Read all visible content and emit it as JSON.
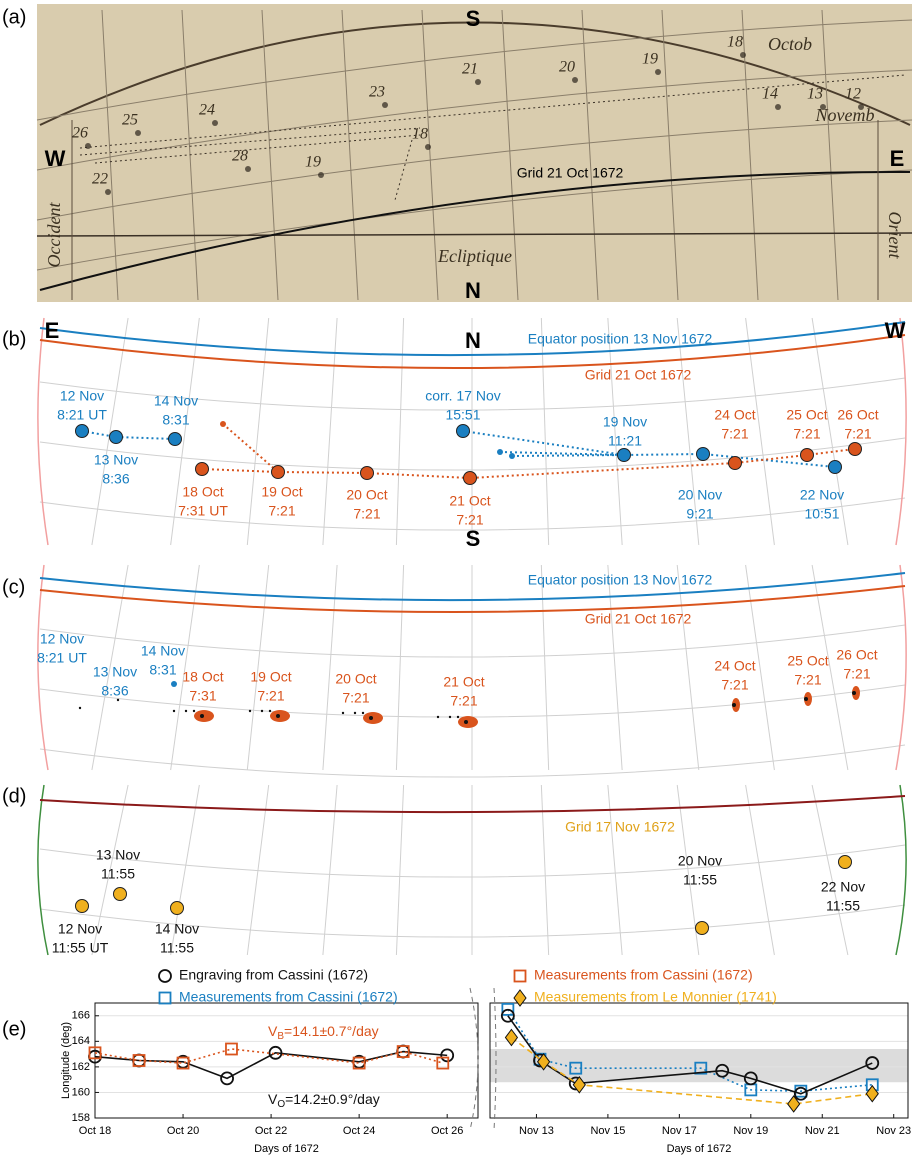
{
  "panels": [
    {
      "tag": "(a)",
      "compass": [
        "S",
        "W",
        "E",
        "N"
      ],
      "texts": [
        "Grid 21 Oct 1672",
        "Occident",
        "Orient",
        "Ecliptique",
        "Octob",
        "Novemb"
      ],
      "dates": [
        "26",
        "25",
        "24",
        "23",
        "21",
        "20",
        "19",
        "18",
        "14",
        "13",
        "12",
        "22",
        "28",
        "19",
        "18"
      ]
    },
    {
      "tag": "(b)",
      "compass": [
        "E",
        "N",
        "W",
        "S"
      ],
      "arcs": [
        {
          "label": "Equator position 13 Nov 1672",
          "color": "#1a7fc1"
        },
        {
          "label": "Grid 21 Oct 1672",
          "color": "#d9541d"
        }
      ],
      "groups": [
        {
          "color": "#1a7fc1",
          "labels": [
            [
              "12 Nov",
              "8:21 UT"
            ],
            [
              "13 Nov",
              "8:36"
            ],
            [
              "14 Nov",
              "8:31"
            ],
            [
              "corr. 17 Nov",
              "15:51"
            ],
            [
              "19 Nov",
              "11:21"
            ],
            [
              "20 Nov",
              "9:21"
            ],
            [
              "22 Nov",
              "10:51"
            ]
          ]
        },
        {
          "color": "#d9541d",
          "labels": [
            [
              "18 Oct",
              "7:31 UT"
            ],
            [
              "19 Oct",
              "7:21"
            ],
            [
              "20 Oct",
              "7:21"
            ],
            [
              "21 Oct",
              "7:21"
            ],
            [
              "24 Oct",
              "7:21"
            ],
            [
              "25 Oct",
              "7:21"
            ],
            [
              "26 Oct",
              "7:21"
            ]
          ]
        }
      ]
    },
    {
      "tag": "(c)",
      "arcs": [
        {
          "label": "Equator position 13 Nov 1672",
          "color": "#1a7fc1"
        },
        {
          "label": "Grid 21 Oct 1672",
          "color": "#d9541d"
        }
      ],
      "groups": [
        {
          "color": "#1a7fc1",
          "labels": [
            [
              "12 Nov",
              "8:21 UT"
            ],
            [
              "13 Nov",
              "8:36"
            ],
            [
              "14 Nov",
              "8:31"
            ]
          ]
        },
        {
          "color": "#d9541d",
          "labels": [
            [
              "18 Oct",
              "7:31"
            ],
            [
              "19 Oct",
              "7:21"
            ],
            [
              "20 Oct",
              "7:21"
            ],
            [
              "21 Oct",
              "7:21"
            ],
            [
              "24 Oct",
              "7:21"
            ],
            [
              "25 Oct",
              "7:21"
            ],
            [
              "26 Oct",
              "7:21"
            ]
          ]
        }
      ]
    },
    {
      "tag": "(d)",
      "arcs": [
        {
          "label": "Grid 17 Nov 1672",
          "color": "#e0a21a",
          "line_color": "#8b1a1a"
        }
      ],
      "groups": [
        {
          "color": "#111111",
          "marker_color": "#f0b01e",
          "labels": [
            [
              "12 Nov",
              "11:55 UT"
            ],
            [
              "13 Nov",
              "11:55"
            ],
            [
              "14 Nov",
              "11:55"
            ],
            [
              "20 Nov",
              "11:55"
            ],
            [
              "22 Nov",
              "11:55"
            ]
          ]
        }
      ]
    }
  ],
  "tag": "(e)",
  "chart_data": [
    {
      "type": "line",
      "ylabel": "Longitude (deg)",
      "xlabel": "Days of 1672",
      "xlim": [
        18,
        26.7
      ],
      "ylim": [
        158,
        167
      ],
      "yticks": [
        158,
        160,
        162,
        164,
        166
      ],
      "grid": true,
      "xticks": [
        {
          "value": 18,
          "label": "Oct 18"
        },
        {
          "value": 20,
          "label": "Oct 20"
        },
        {
          "value": 22,
          "label": "Oct 22"
        },
        {
          "value": 24,
          "label": "Oct 24"
        },
        {
          "value": 26,
          "label": "Oct 26"
        }
      ],
      "series": [
        {
          "name": "Engraving from Cassini (1672)",
          "color": "#111111",
          "marker": "circle",
          "dash": "solid",
          "x": [
            18,
            19,
            20,
            21,
            22.1,
            24,
            25,
            26
          ],
          "values": [
            162.8,
            162.5,
            162.4,
            161.1,
            163.1,
            162.4,
            163.2,
            162.9
          ]
        },
        {
          "name": "Measurements from Cassini (1672)",
          "color": "#d9541d",
          "marker": "square",
          "dash": "dotted",
          "x": [
            18,
            19,
            20,
            21.1,
            24,
            25,
            25.9
          ],
          "values": [
            163.1,
            162.5,
            162.3,
            163.4,
            162.3,
            163.2,
            162.3
          ]
        }
      ],
      "annotations": [
        {
          "text": "V",
          "sub": "B",
          "rest": "=14.1±0.7°/day",
          "color": "#d9541d"
        },
        {
          "text": "V",
          "sub": "O",
          "rest": "=14.2±0.9°/day",
          "color": "#111111"
        }
      ]
    },
    {
      "type": "line",
      "xlabel": "Days of 1672",
      "xlim": [
        11.7,
        23.4
      ],
      "ylim": [
        158,
        167
      ],
      "yticks": [
        158,
        160,
        162,
        164,
        166
      ],
      "grid": true,
      "band": [
        160.8,
        163.4
      ],
      "xticks": [
        {
          "value": 13,
          "label": "Nov 13"
        },
        {
          "value": 15,
          "label": "Nov 15"
        },
        {
          "value": 17,
          "label": "Nov 17"
        },
        {
          "value": 19,
          "label": "Nov 19"
        },
        {
          "value": 21,
          "label": "Nov 21"
        },
        {
          "value": 23,
          "label": "Nov 23"
        }
      ],
      "series": [
        {
          "name": "Measurements from Cassini (1672)",
          "color": "#1a7fc1",
          "marker": "square",
          "dash": "dotted",
          "x": [
            12.2,
            13.1,
            14.1,
            17.6,
            19.0,
            20.4,
            22.4
          ],
          "values": [
            166.5,
            162.6,
            161.9,
            161.9,
            160.2,
            160.1,
            160.6
          ]
        },
        {
          "name": "Engraving from Cassini (1672)",
          "color": "#111111",
          "marker": "circle",
          "dash": "solid",
          "x": [
            12.2,
            13.1,
            14.1,
            18.2,
            19.0,
            20.4,
            22.4
          ],
          "values": [
            166.0,
            162.5,
            160.7,
            161.7,
            161.1,
            159.9,
            162.3
          ]
        },
        {
          "name": "Measurements from Le Monnier (1741)",
          "color": "#f0b01e",
          "marker": "diamond",
          "dash": "dashed",
          "x": [
            12.3,
            13.2,
            14.2,
            20.2,
            22.4
          ],
          "values": [
            164.3,
            162.4,
            160.6,
            159.1,
            159.9
          ]
        }
      ]
    }
  ]
}
